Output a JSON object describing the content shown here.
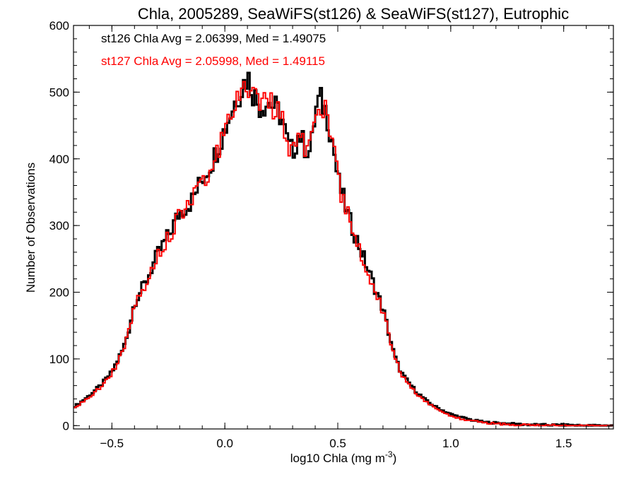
{
  "chart_data": {
    "type": "histogram",
    "title": "Chla, 2005289, SeaWiFS(st126) & SeaWiFS(st127), Eutrophic",
    "xlabel_main": "log10 Chla (mg m",
    "xlabel_sup": "-3",
    "xlabel_end": ")",
    "ylabel": "Number of Observations",
    "xlim": [
      -0.67,
      1.72
    ],
    "ylim": [
      -5,
      600
    ],
    "xticks": [
      -0.5,
      0.0,
      0.5,
      1.0,
      1.5
    ],
    "xtick_labels": [
      "−0.5",
      "0.0",
      "0.5",
      "1.0",
      "1.5"
    ],
    "yticks": [
      0,
      100,
      200,
      300,
      400,
      500,
      600
    ],
    "ytick_labels": [
      "0",
      "100",
      "200",
      "300",
      "400",
      "500",
      "600"
    ],
    "x_minor_step": 0.1,
    "y_minor_step": 20,
    "annotations": [
      {
        "text": "st126 Chla Avg = 2.06399, Med = 1.49075",
        "color": "#000000"
      },
      {
        "text": "st127 Chla Avg = 2.05998, Med = 1.49115",
        "color": "#ff0000"
      }
    ],
    "series": [
      {
        "color": "#000000",
        "bin_width": 0.01,
        "x": [
          -0.67,
          -0.65,
          -0.6,
          -0.55,
          -0.5,
          -0.45,
          -0.42,
          -0.41,
          -0.4,
          -0.35,
          -0.3,
          -0.25,
          -0.2,
          -0.15,
          -0.1,
          -0.05,
          0.0,
          0.05,
          0.08,
          0.1,
          0.12,
          0.15,
          0.2,
          0.25,
          0.28,
          0.3,
          0.33,
          0.35,
          0.38,
          0.4,
          0.42,
          0.45,
          0.48,
          0.5,
          0.55,
          0.6,
          0.65,
          0.7,
          0.75,
          0.78,
          0.8,
          0.85,
          0.9,
          0.95,
          1.0,
          1.05,
          1.1,
          1.15,
          1.2,
          1.25,
          1.3,
          1.4,
          1.5,
          1.6,
          1.72
        ],
        "y": [
          28,
          32,
          45,
          60,
          80,
          115,
          150,
          170,
          185,
          215,
          255,
          285,
          320,
          335,
          370,
          400,
          445,
          490,
          510,
          525,
          505,
          480,
          485,
          465,
          420,
          410,
          440,
          420,
          410,
          470,
          490,
          470,
          420,
          370,
          310,
          265,
          220,
          175,
          105,
          80,
          70,
          50,
          35,
          25,
          17,
          12,
          8,
          5,
          4,
          3,
          2,
          1,
          1,
          0,
          0
        ]
      },
      {
        "color": "#ff0000",
        "bin_width": 0.01,
        "x": [
          -0.67,
          -0.65,
          -0.6,
          -0.55,
          -0.5,
          -0.45,
          -0.42,
          -0.41,
          -0.4,
          -0.35,
          -0.3,
          -0.25,
          -0.2,
          -0.15,
          -0.1,
          -0.05,
          0.0,
          0.05,
          0.08,
          0.1,
          0.12,
          0.15,
          0.2,
          0.25,
          0.28,
          0.3,
          0.33,
          0.35,
          0.38,
          0.4,
          0.42,
          0.45,
          0.48,
          0.5,
          0.55,
          0.6,
          0.65,
          0.7,
          0.75,
          0.78,
          0.8,
          0.85,
          0.9,
          0.95,
          1.0,
          1.05,
          1.1,
          1.15,
          1.2,
          1.25,
          1.3,
          1.4,
          1.5,
          1.6,
          1.72
        ],
        "y": [
          25,
          30,
          43,
          58,
          78,
          112,
          148,
          168,
          182,
          212,
          252,
          282,
          318,
          332,
          367,
          397,
          442,
          487,
          505,
          518,
          500,
          476,
          482,
          460,
          418,
          407,
          437,
          418,
          408,
          466,
          488,
          468,
          418,
          368,
          308,
          262,
          218,
          172,
          103,
          78,
          68,
          48,
          33,
          23,
          15,
          10,
          7,
          4,
          3,
          2,
          1,
          1,
          0,
          0,
          0
        ]
      }
    ]
  }
}
